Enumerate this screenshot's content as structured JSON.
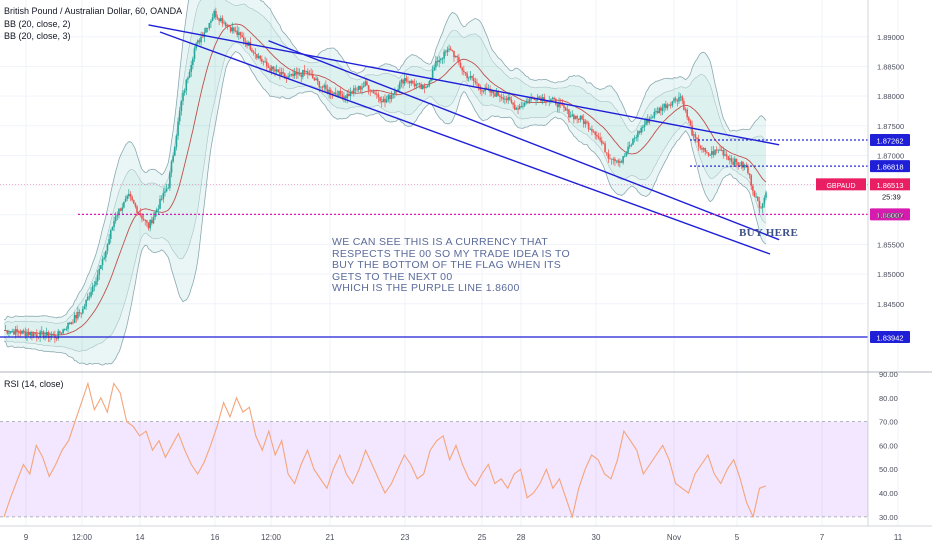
{
  "legend": {
    "title": "British Pound / Australian Dollar, 60, OANDA",
    "bb1": "BB (20, close, 2)",
    "bb2": "BB (20, close, 3)",
    "rsi": "RSI (14, close)"
  },
  "annotation": {
    "lines": [
      "WE CAN SEE THIS IS A CURRENCY THAT",
      "RESPECTS THE 00 SO MY TRADE IDEA IS TO",
      "BUY THE BOTTOM OF THE FLAG WHEN ITS",
      "GETS TO THE NEXT 00",
      "WHICH IS THE PURPLE LINE 1.8600"
    ],
    "buy_label": "BUY HERE"
  },
  "colors": {
    "up": "#26a69a",
    "down": "#ef5350",
    "band": "#8aa9b0",
    "band_fill": "rgba(38,166,154,0.10)",
    "channel": "#1f1fd8",
    "level_dotted": "#2b2bd0",
    "purple_level": "#d61bae",
    "rsi_line": "#f4a57a",
    "rsi_fill": "rgba(153,51,255,0.12)",
    "price_label": "#e91e63"
  },
  "chart_data": [
    {
      "type": "candlestick",
      "title": "British Pound / Australian Dollar, 60, OANDA",
      "ylim": [
        1.8335,
        1.8962
      ],
      "y_ticks": [
        1.845,
        1.85,
        1.855,
        1.86,
        1.865,
        1.87,
        1.875,
        1.88,
        1.885,
        1.89
      ],
      "x_tick_labels": [
        "9",
        "12:00",
        "14",
        "16",
        "12:00",
        "21",
        "23",
        "25",
        "28",
        "30",
        "Nov",
        "5",
        "7",
        "11"
      ],
      "close_path": [
        [
          0,
          1.8405
        ],
        [
          8,
          1.8395
        ],
        [
          12,
          1.844
        ],
        [
          15,
          1.852
        ],
        [
          17,
          1.86
        ],
        [
          19,
          1.863
        ],
        [
          22,
          1.858
        ],
        [
          25,
          1.865
        ],
        [
          27,
          1.879
        ],
        [
          29,
          1.888
        ],
        [
          32,
          1.894
        ],
        [
          34,
          1.892
        ],
        [
          37,
          1.889
        ],
        [
          40,
          1.885
        ],
        [
          43,
          1.883
        ],
        [
          46,
          1.884
        ],
        [
          49,
          1.881
        ],
        [
          52,
          1.88
        ],
        [
          55,
          1.882
        ],
        [
          58,
          1.879
        ],
        [
          61,
          1.883
        ],
        [
          64,
          1.881
        ],
        [
          66,
          1.886
        ],
        [
          68,
          1.888
        ],
        [
          70,
          1.884
        ],
        [
          73,
          1.881
        ],
        [
          76,
          1.88
        ],
        [
          78,
          1.878
        ],
        [
          81,
          1.88
        ],
        [
          84,
          1.879
        ],
        [
          86,
          1.877
        ],
        [
          88,
          1.876
        ],
        [
          90,
          1.874
        ],
        [
          92,
          1.87
        ],
        [
          94,
          1.869
        ],
        [
          96,
          1.873
        ],
        [
          98,
          1.876
        ],
        [
          100,
          1.878
        ],
        [
          103,
          1.88
        ],
        [
          105,
          1.873
        ],
        [
          107,
          1.87
        ],
        [
          109,
          1.871
        ],
        [
          111,
          1.869
        ],
        [
          113,
          1.868
        ],
        [
          115,
          1.861
        ],
        [
          116,
          1.864
        ]
      ],
      "channel_upper": [
        [
          22,
          1.892
        ],
        [
          118,
          1.8718
        ]
      ],
      "channel_lower": [
        [
          22,
          1.89
        ],
        [
          118,
          1.8558
        ]
      ],
      "level_lines": [
        {
          "price": 1.8726,
          "label": "1.87262",
          "style": "dotted"
        },
        {
          "price": 1.8682,
          "label": "1.86818",
          "style": "dotted"
        },
        {
          "price": 1.86007,
          "label": "1.86007",
          "style": "dotted-purple"
        },
        {
          "price": 1.8394,
          "label": "1.83942",
          "style": "solid"
        }
      ],
      "current": {
        "symbol": "GBPAUD",
        "price": "1.86513",
        "countdown": "25:39"
      }
    },
    {
      "type": "line",
      "title": "RSI (14, close)",
      "ylim": [
        27,
        90
      ],
      "y_ticks": [
        30,
        40,
        50,
        60,
        70,
        80,
        90
      ],
      "y_tick_labels": [
        "30.00",
        "40.00",
        "50.00",
        "60.00",
        "70.00",
        "80.00",
        "90.00"
      ],
      "band": [
        30,
        70
      ],
      "series": [
        {
          "values": [
            30,
            38,
            45,
            52,
            48,
            60,
            55,
            47,
            52,
            58,
            62,
            70,
            78,
            86,
            75,
            80,
            74,
            86,
            82,
            70,
            68,
            64,
            66,
            58,
            62,
            55,
            60,
            65,
            58,
            52,
            48,
            53,
            60,
            68,
            78,
            72,
            80,
            74,
            76,
            64,
            58,
            66,
            56,
            62,
            48,
            44,
            52,
            58,
            50,
            46,
            42,
            50,
            56,
            48,
            44,
            50,
            58,
            52,
            46,
            40,
            44,
            50,
            56,
            52,
            46,
            48,
            58,
            62,
            64,
            54,
            60,
            52,
            46,
            43,
            48,
            52,
            44,
            46,
            42,
            48,
            50,
            38,
            40,
            44,
            50,
            42,
            46,
            38,
            30,
            42,
            50,
            56,
            54,
            48,
            46,
            54,
            66,
            62,
            58,
            48,
            52,
            56,
            60,
            54,
            44,
            42,
            40,
            48,
            52,
            56,
            48,
            44,
            50,
            54,
            46,
            36,
            30,
            42,
            43
          ]
        }
      ]
    }
  ]
}
